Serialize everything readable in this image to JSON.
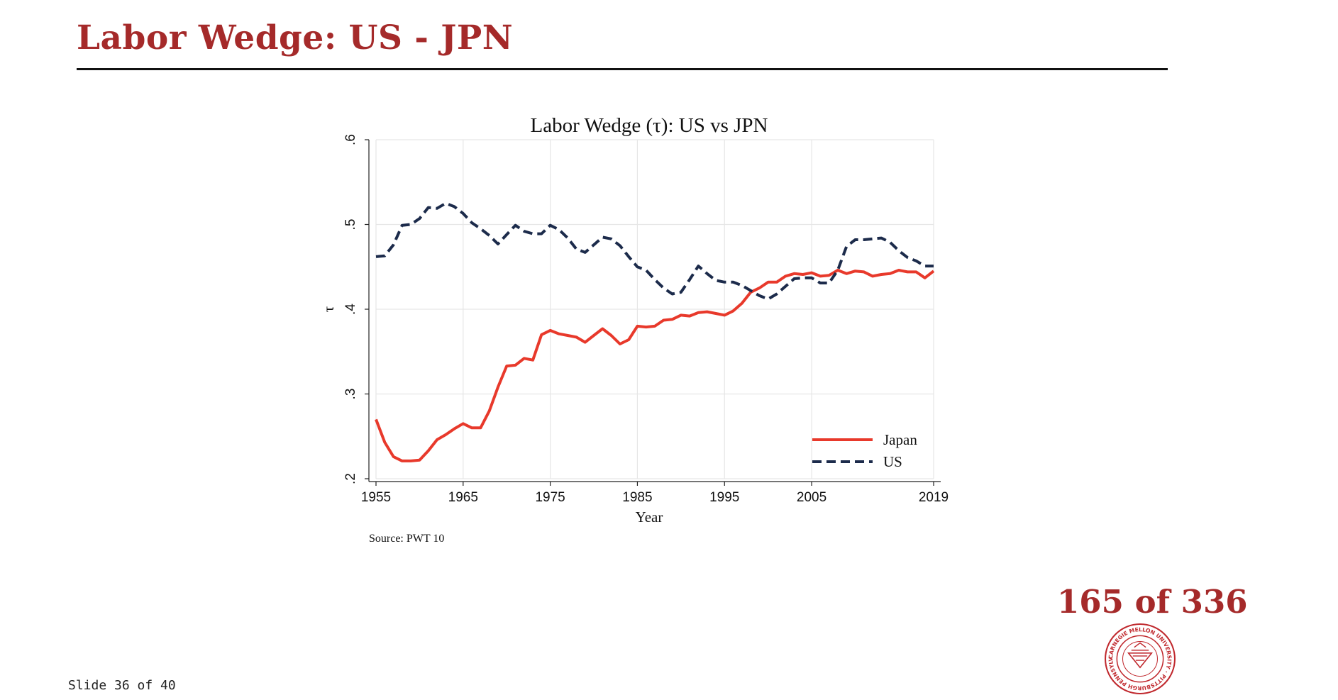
{
  "slide": {
    "title": "Labor Wedge: US - JPN",
    "page_count": "165 of 336",
    "slide_number": "Slide 36 of 40",
    "accent_color": "#a52a2a",
    "seal_text": "CARNEGIE MELLON UNIVERSITY · PITTSBURGH PENNSYLVANIA 1900"
  },
  "chart_data": {
    "type": "line",
    "title": "Labor Wedge (τ): US vs JPN",
    "xlabel": "Year",
    "ylabel": "τ",
    "source_note": "Source: PWT 10",
    "xlim": [
      1955,
      2019
    ],
    "ylim": [
      0.2,
      0.6
    ],
    "xticks": [
      1955,
      1965,
      1975,
      1985,
      1995,
      2005,
      2019
    ],
    "xtick_labels": [
      "1955",
      "1965",
      "1975",
      "1985",
      "1995",
      "2005",
      "2019"
    ],
    "yticks": [
      0.2,
      0.3,
      0.4,
      0.5,
      0.6
    ],
    "ytick_labels": [
      ".2",
      ".3",
      ".4",
      ".5",
      ".6"
    ],
    "grid": true,
    "legend_position": "bottom-right",
    "x": [
      1955,
      1956,
      1957,
      1958,
      1959,
      1960,
      1961,
      1962,
      1963,
      1964,
      1965,
      1966,
      1967,
      1968,
      1969,
      1970,
      1971,
      1972,
      1973,
      1974,
      1975,
      1976,
      1977,
      1978,
      1979,
      1980,
      1981,
      1982,
      1983,
      1984,
      1985,
      1986,
      1987,
      1988,
      1989,
      1990,
      1991,
      1992,
      1993,
      1994,
      1995,
      1996,
      1997,
      1998,
      1999,
      2000,
      2001,
      2002,
      2003,
      2004,
      2005,
      2006,
      2007,
      2008,
      2009,
      2010,
      2011,
      2012,
      2013,
      2014,
      2015,
      2016,
      2017,
      2018,
      2019
    ],
    "series": [
      {
        "name": "Japan",
        "color": "#e8392b",
        "style": "solid",
        "values": [
          0.27,
          0.243,
          0.226,
          0.221,
          0.221,
          0.222,
          0.233,
          0.246,
          0.252,
          0.259,
          0.265,
          0.26,
          0.26,
          0.28,
          0.308,
          0.333,
          0.334,
          0.342,
          0.34,
          0.37,
          0.375,
          0.371,
          0.369,
          0.367,
          0.361,
          0.369,
          0.377,
          0.369,
          0.359,
          0.364,
          0.38,
          0.379,
          0.38,
          0.387,
          0.388,
          0.393,
          0.392,
          0.396,
          0.397,
          0.395,
          0.393,
          0.398,
          0.407,
          0.42,
          0.425,
          0.432,
          0.432,
          0.439,
          0.442,
          0.441,
          0.443,
          0.439,
          0.44,
          0.446,
          0.442,
          0.445,
          0.444,
          0.439,
          0.441,
          0.442,
          0.446,
          0.444,
          0.444,
          0.437,
          0.445
        ]
      },
      {
        "name": "US",
        "color": "#1c2b4b",
        "style": "dashed",
        "values": [
          0.462,
          0.463,
          0.476,
          0.499,
          0.5,
          0.507,
          0.52,
          0.519,
          0.525,
          0.521,
          0.513,
          0.502,
          0.495,
          0.487,
          0.477,
          0.488,
          0.499,
          0.492,
          0.489,
          0.489,
          0.499,
          0.494,
          0.484,
          0.471,
          0.467,
          0.476,
          0.485,
          0.483,
          0.475,
          0.462,
          0.45,
          0.446,
          0.435,
          0.425,
          0.418,
          0.42,
          0.435,
          0.451,
          0.442,
          0.434,
          0.432,
          0.432,
          0.428,
          0.422,
          0.416,
          0.412,
          0.418,
          0.427,
          0.436,
          0.437,
          0.437,
          0.431,
          0.431,
          0.446,
          0.474,
          0.482,
          0.482,
          0.483,
          0.484,
          0.479,
          0.469,
          0.461,
          0.457,
          0.451,
          0.451
        ]
      }
    ]
  }
}
